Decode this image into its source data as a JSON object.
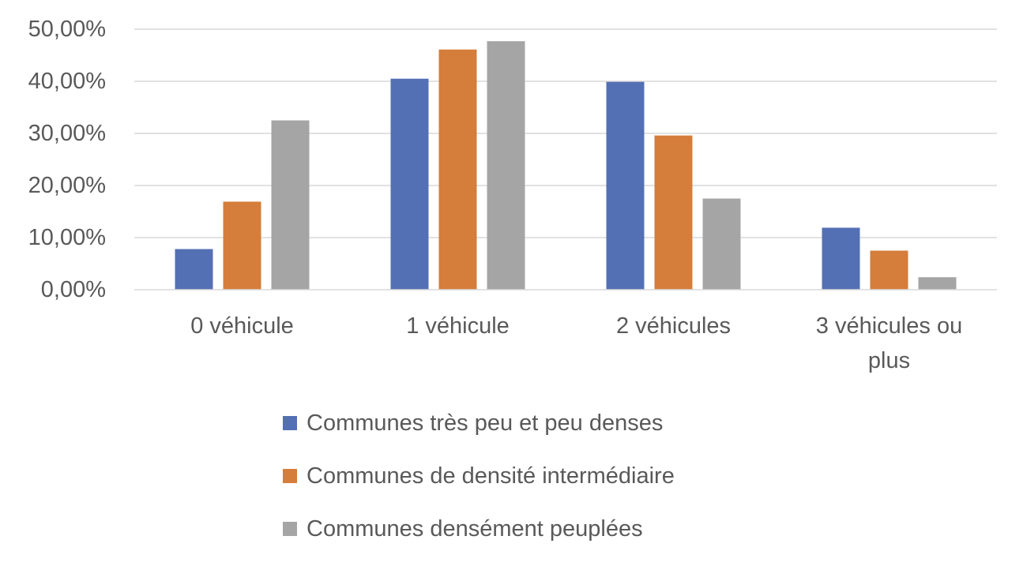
{
  "chart_data": {
    "type": "bar",
    "categories": [
      [
        "0 véhicule"
      ],
      [
        "1 véhicule"
      ],
      [
        "2 véhicules"
      ],
      [
        "3 véhicules ou",
        "plus"
      ]
    ],
    "series": [
      {
        "name": "Communes très peu et peu denses",
        "color": "#5470B4",
        "values": [
          7.8,
          40.5,
          39.9,
          11.9
        ]
      },
      {
        "name": "Communes de densité intermédiaire",
        "color": "#D57D3A",
        "values": [
          16.9,
          46.1,
          29.6,
          7.5
        ]
      },
      {
        "name": "Communes densément peuplées",
        "color": "#A5A5A5",
        "values": [
          32.5,
          47.7,
          17.5,
          2.4
        ]
      }
    ],
    "yticks": [
      "0,00%",
      "10,00%",
      "20,00%",
      "30,00%",
      "40,00%",
      "50,00%"
    ],
    "ylim": [
      0,
      50
    ],
    "y_unit": "%",
    "grid": true,
    "legend_position": "bottom"
  }
}
